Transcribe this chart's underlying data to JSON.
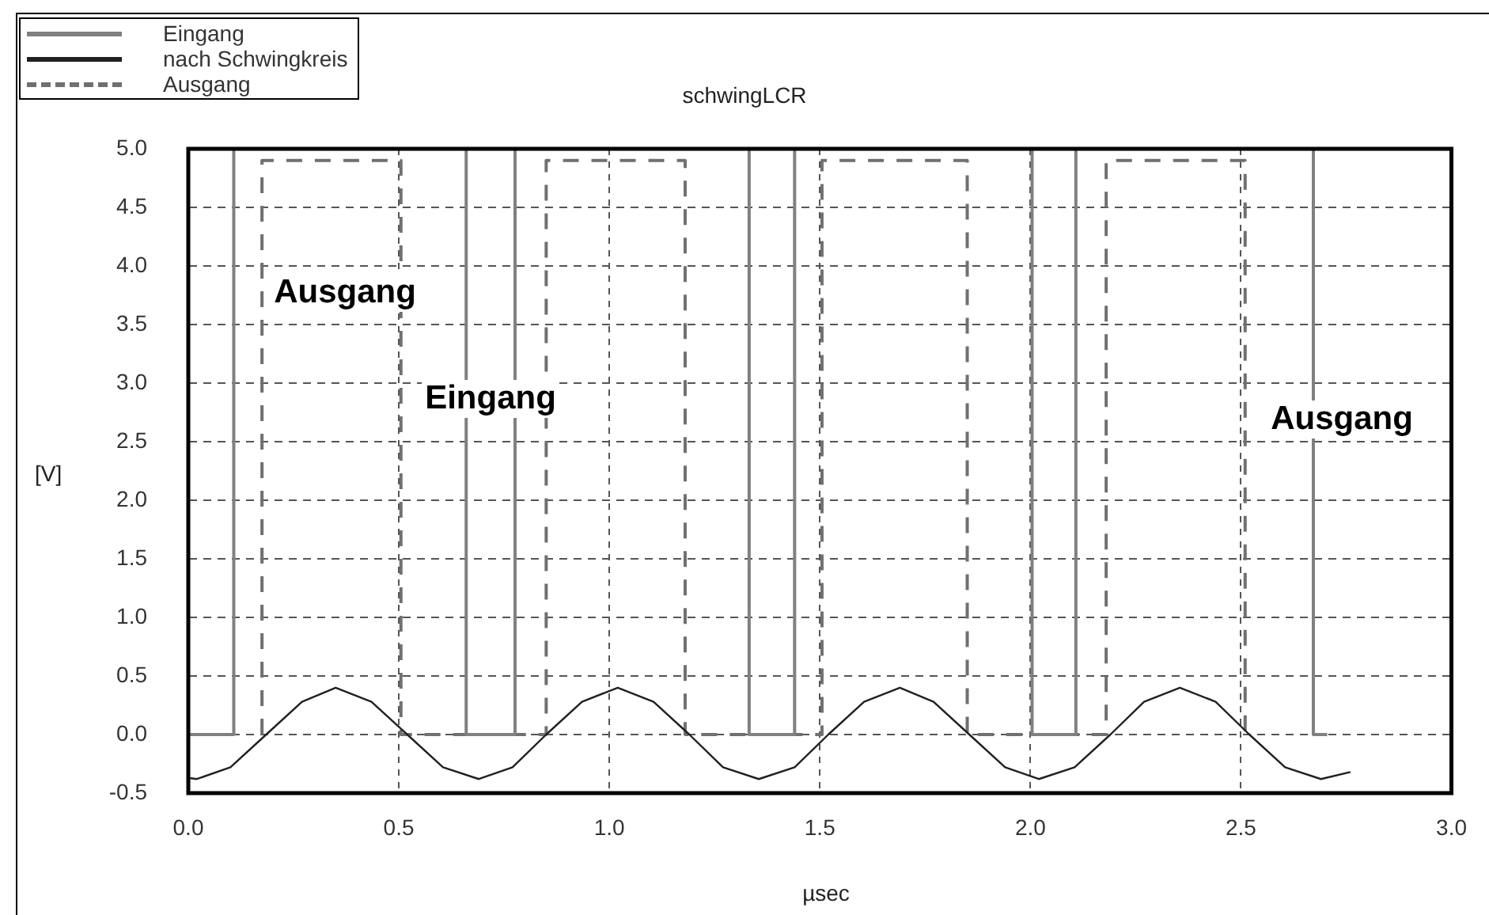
{
  "chart_data": {
    "type": "line",
    "title": "schwingLCR",
    "xlabel": "µsec",
    "ylabel": "[V]",
    "xlim": [
      0,
      3
    ],
    "ylim": [
      -0.5,
      5
    ],
    "xticks": [
      {
        "value": 0,
        "label": "0.0"
      },
      {
        "value": 0.5,
        "label": "0.5"
      },
      {
        "value": 1,
        "label": "1.0"
      },
      {
        "value": 1.5,
        "label": "1.5"
      },
      {
        "value": 2,
        "label": "2.0"
      },
      {
        "value": 2.5,
        "label": "2.5"
      },
      {
        "value": 3,
        "label": "3.0"
      }
    ],
    "yticks": [
      {
        "value": -0.5,
        "label": "-0.5"
      },
      {
        "value": 0,
        "label": "0.0"
      },
      {
        "value": 0.5,
        "label": "0.5"
      },
      {
        "value": 1,
        "label": "1.0"
      },
      {
        "value": 1.5,
        "label": "1.5"
      },
      {
        "value": 2,
        "label": "2.0"
      },
      {
        "value": 2.5,
        "label": "2.5"
      },
      {
        "value": 3,
        "label": "3.0"
      },
      {
        "value": 3.5,
        "label": "3.5"
      },
      {
        "value": 4,
        "label": "4.0"
      },
      {
        "value": 4.5,
        "label": "4.5"
      },
      {
        "value": 5,
        "label": "5.0"
      }
    ],
    "grid": true,
    "legend": "top left",
    "marker": "none",
    "series": [
      {
        "name": "Eingang",
        "color": "#808080",
        "line_style": "solid",
        "x": [
          0,
          0.108,
          0.108,
          0.66,
          0.66,
          0.776,
          0.776,
          1.332,
          1.332,
          1.44,
          1.44,
          2.004,
          2.004,
          2.108,
          2.108,
          2.672,
          2.672,
          2.705
        ],
        "values": [
          0,
          0,
          5,
          5,
          0,
          0,
          5,
          5,
          0,
          0,
          5,
          5,
          0,
          0,
          5,
          5,
          0,
          0
        ]
      },
      {
        "name": "nach Schwingkreis",
        "color": "#202020",
        "line_style": "solid",
        "x": [
          0,
          0.02,
          0.1,
          0.185,
          0.27,
          0.35,
          0.435,
          0.52,
          0.605,
          0.69,
          0.77,
          0.85,
          0.935,
          1.02,
          1.105,
          1.19,
          1.27,
          1.355,
          1.44,
          1.52,
          1.605,
          1.69,
          1.77,
          1.855,
          1.94,
          2.02,
          2.105,
          2.19,
          2.27,
          2.355,
          2.44,
          2.52,
          2.605,
          2.69,
          2.76
        ],
        "values": [
          -0.37,
          -0.38,
          -0.28,
          0,
          0.28,
          0.4,
          0.28,
          0,
          -0.28,
          -0.38,
          -0.28,
          0,
          0.28,
          0.4,
          0.28,
          0,
          -0.28,
          -0.38,
          -0.28,
          0,
          0.28,
          0.4,
          0.28,
          0,
          -0.28,
          -0.38,
          -0.28,
          0,
          0.28,
          0.4,
          0.28,
          0,
          -0.28,
          -0.38,
          -0.32
        ]
      },
      {
        "name": "Ausgang",
        "color": "#707070",
        "line_style": "dashed",
        "x": [
          0.175,
          0.175,
          0.505,
          0.505,
          0.85,
          0.85,
          1.18,
          1.18,
          1.505,
          1.505,
          1.85,
          1.85,
          2.18,
          2.18,
          2.51,
          2.51
        ],
        "values": [
          0,
          4.9,
          4.9,
          0,
          0,
          4.9,
          4.9,
          0,
          0,
          4.9,
          4.9,
          0,
          0,
          4.9,
          4.9,
          0
        ]
      }
    ],
    "annotations": [
      "Ausgang",
      "Eingang",
      "Ausgang"
    ]
  }
}
